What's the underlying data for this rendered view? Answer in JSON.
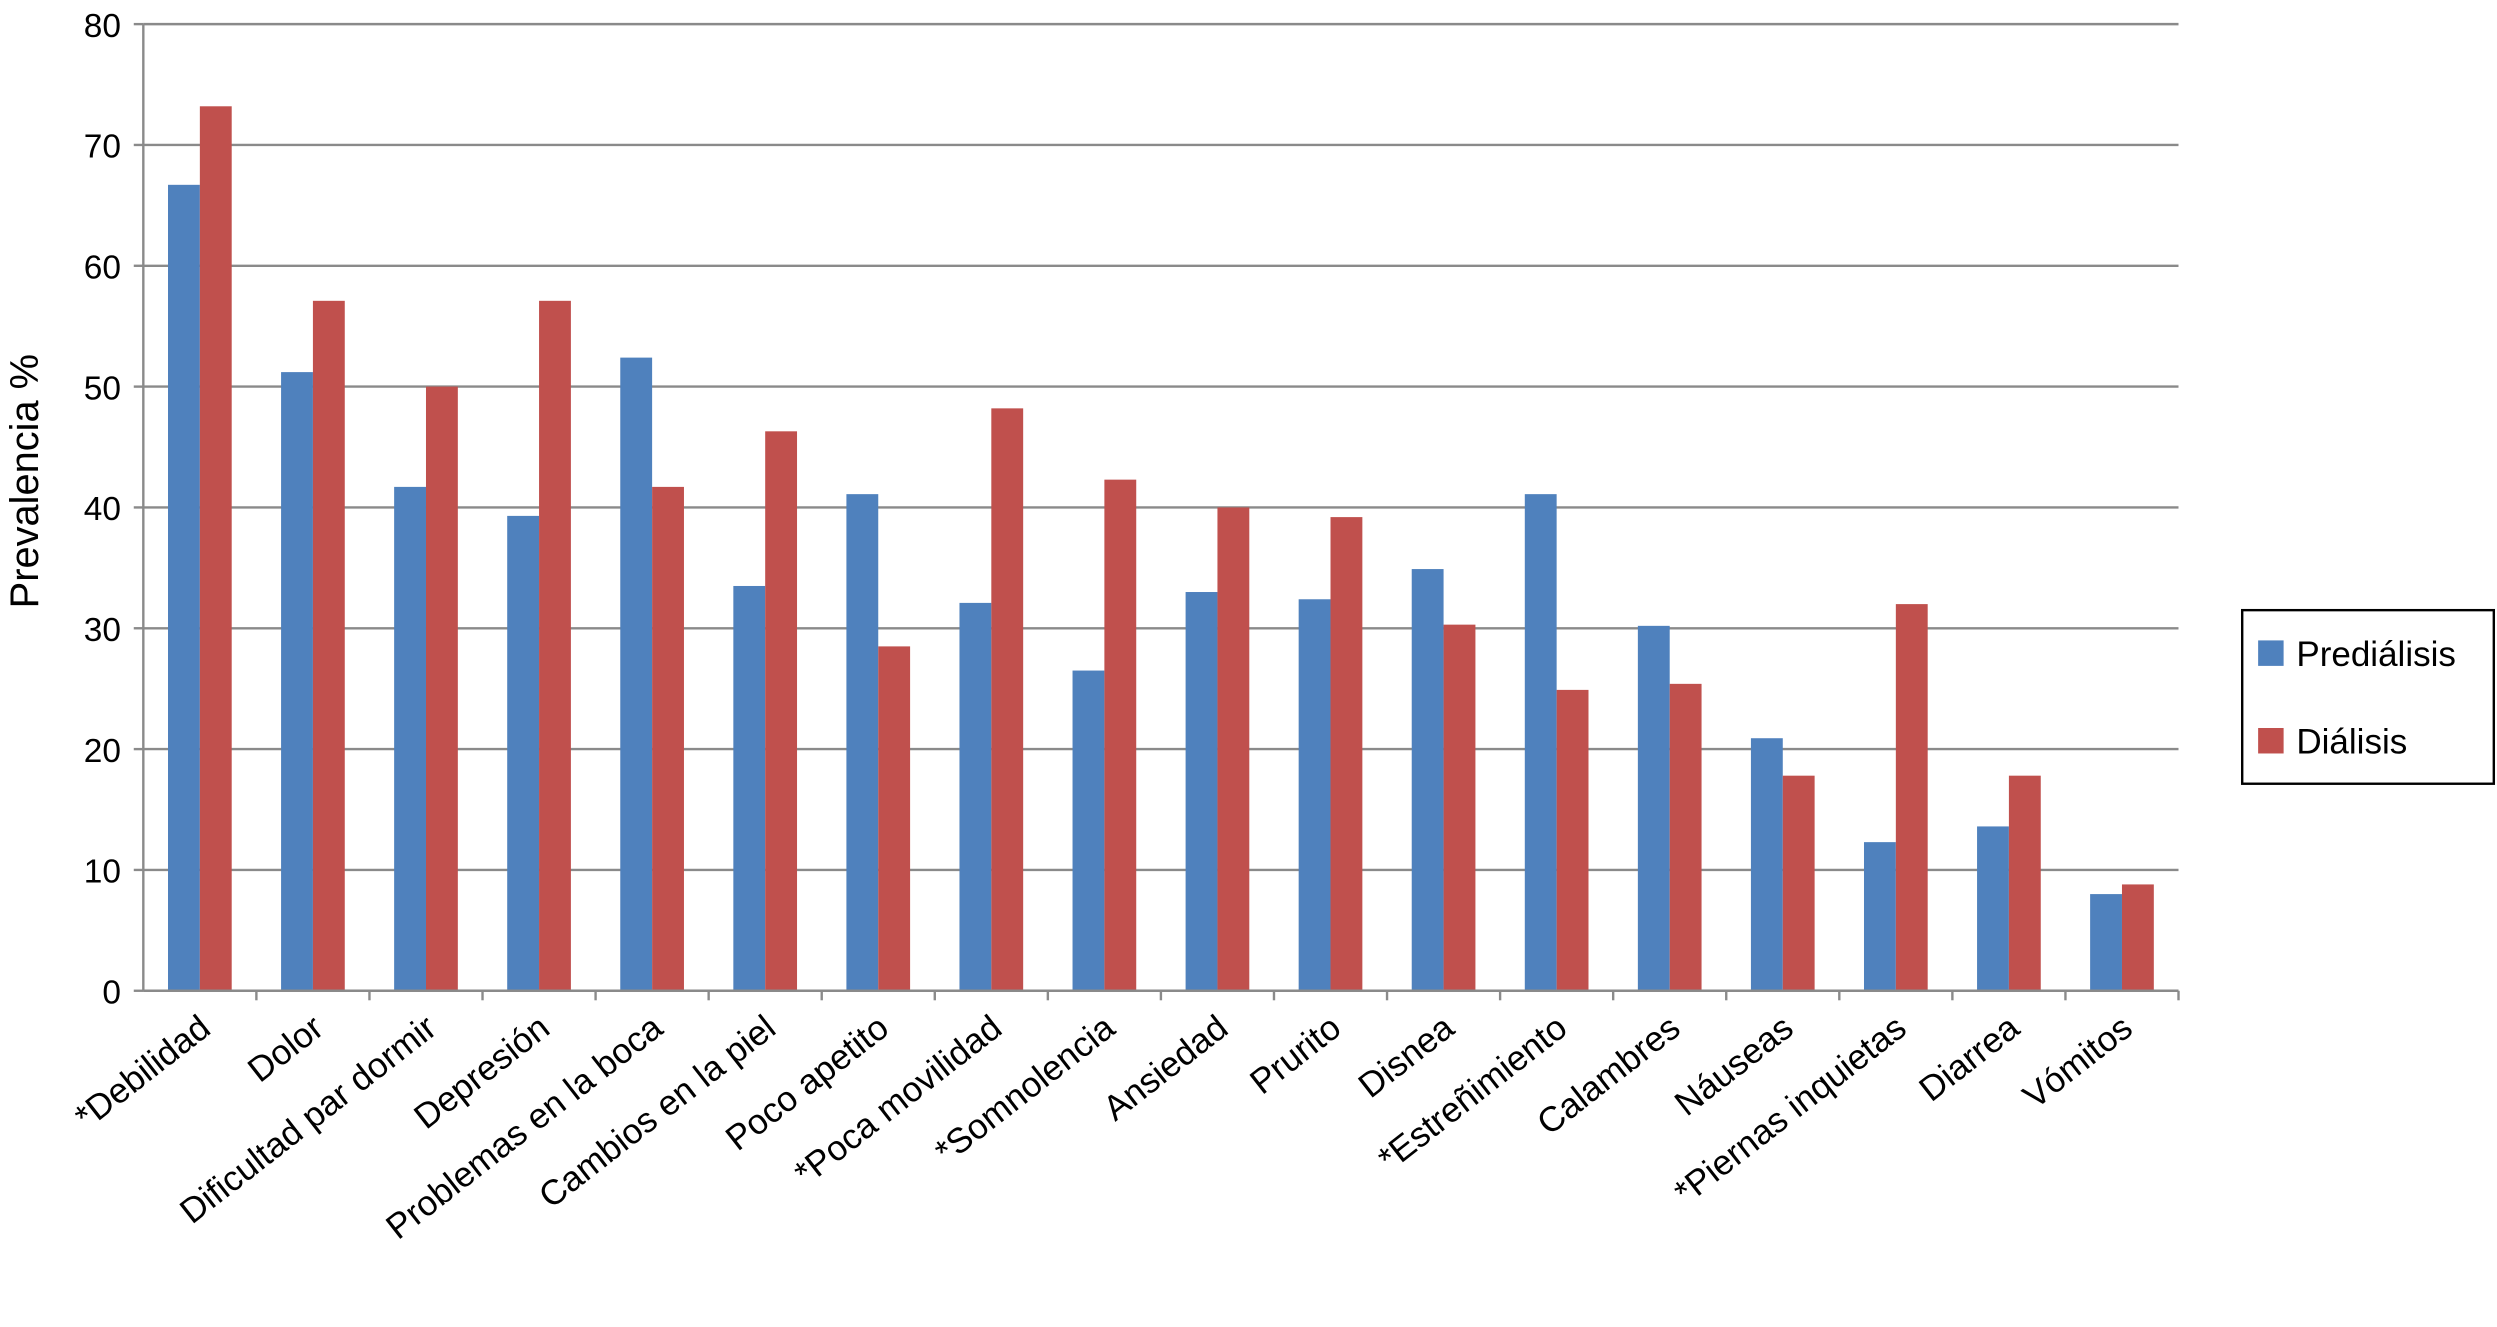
{
  "chart_data": {
    "type": "bar",
    "y_label": "Prevalencia %",
    "categories": [
      "*Debilidad",
      "Dolor",
      "Dificultad par dormir",
      "Depresión",
      "Problemas en la boca",
      "Cambios en la piel",
      "Poco apetito",
      "*Poca movilidad",
      "*Somnolencia",
      "Ansiedad",
      "Prurito",
      "Disnea",
      "*Estreñimiento",
      "Calambres",
      "Náuseas",
      "*Piernas inquietas",
      "Diarrea",
      "Vómitos"
    ],
    "series": [
      {
        "name": "Prediálisis",
        "color": "#4f81bd",
        "values": [
          66.7,
          51.2,
          41.7,
          39.3,
          52.4,
          33.5,
          41.1,
          32.1,
          26.5,
          33,
          32.4,
          34.9,
          41.1,
          30.2,
          20.9,
          12.3,
          13.6,
          8
        ]
      },
      {
        "name": "Diálisis",
        "color": "#c0504d",
        "values": [
          73.2,
          57.1,
          50,
          57.1,
          41.7,
          46.3,
          28.5,
          48.2,
          42.3,
          40,
          39.2,
          30.3,
          24.9,
          25.4,
          17.8,
          32,
          17.8,
          8.8
        ]
      }
    ],
    "ylim": [
      0,
      80
    ],
    "yticks": [
      0,
      10,
      20,
      30,
      40,
      50,
      60,
      70,
      80
    ],
    "grid": true,
    "legend": "right"
  }
}
